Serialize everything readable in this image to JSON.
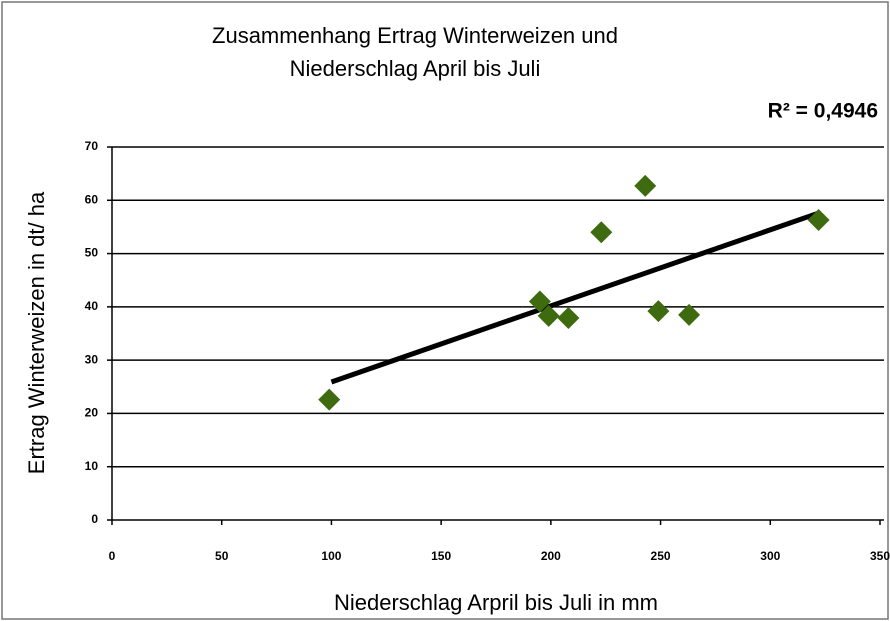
{
  "chart_data": {
    "type": "scatter",
    "title": "Zusammenhang Ertrag Winterweizen und",
    "subtitle": "Niederschlag April bis Juli",
    "annotation": "R² = 0,4946",
    "x_label": "Niederschlag Arpril bis Juli in mm",
    "y_label": "Ertrag Winterweizen in dt/ ha",
    "x": [
      99,
      195,
      199,
      208,
      223,
      243,
      249,
      263,
      322
    ],
    "series": [
      {
        "color": "#3f6b10",
        "values": [
          22.6,
          41,
          38.3,
          37.9,
          54,
          62.7,
          39.2,
          38.5,
          56.3
        ]
      }
    ],
    "trendline": {
      "color": "#000000",
      "x": [
        100,
        322
      ],
      "y": [
        25.9,
        57.6
      ]
    },
    "xlim": [
      0,
      350
    ],
    "xticks": [
      0,
      50,
      100,
      150,
      200,
      250,
      300,
      350
    ],
    "ylim": [
      0,
      70
    ],
    "yticks": [
      0,
      10,
      20,
      30,
      40,
      50,
      60,
      70
    ],
    "grid": true
  }
}
